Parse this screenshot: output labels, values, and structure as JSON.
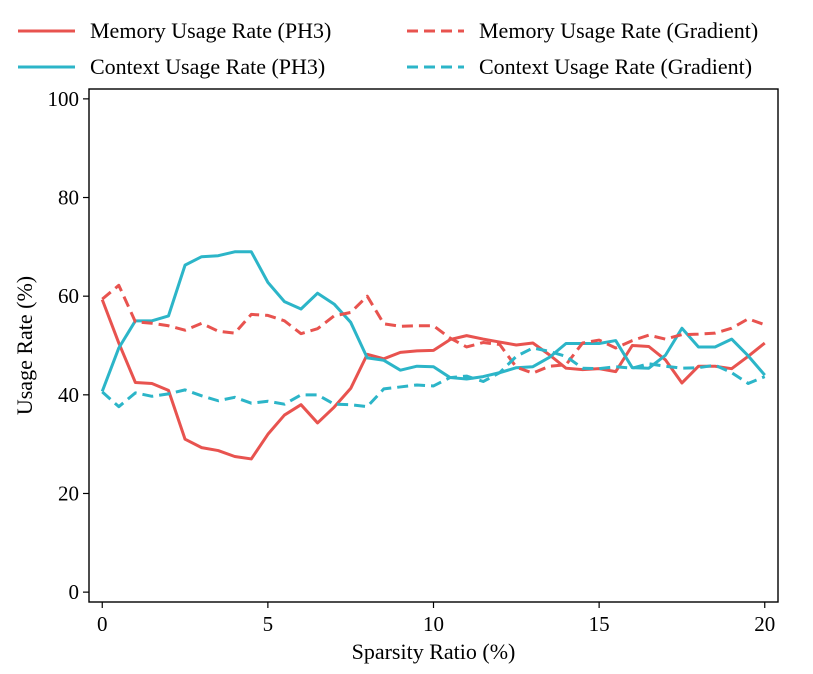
{
  "chart_data": {
    "type": "line",
    "title": "",
    "xlabel": "Sparsity Ratio (%)",
    "ylabel": "Usage Rate (%)",
    "xlim": [
      -0.4,
      20.4
    ],
    "ylim": [
      -2,
      102
    ],
    "xticks": [
      0,
      5,
      10,
      15,
      20
    ],
    "yticks": [
      0,
      20,
      40,
      60,
      80,
      100
    ],
    "grid": false,
    "legend_position": "top",
    "x": [
      0,
      0.5,
      1,
      1.5,
      2,
      2.5,
      3,
      3.5,
      4,
      4.5,
      5,
      5.5,
      6,
      6.5,
      7,
      7.5,
      8,
      8.5,
      9,
      9.5,
      10,
      10.5,
      11,
      11.5,
      12,
      12.5,
      13,
      13.5,
      14,
      14.5,
      15,
      15.5,
      16,
      16.5,
      17,
      17.5,
      18,
      18.5,
      19,
      19.5,
      20
    ],
    "series": [
      {
        "name": "Memory Usage Rate (PH3)",
        "color": "#e8534f",
        "dash": "solid",
        "values": [
          59.3,
          50.5,
          42.5,
          42.3,
          40.9,
          31.0,
          29.3,
          28.7,
          27.5,
          27.0,
          32.0,
          35.9,
          38.0,
          34.3,
          37.5,
          41.3,
          48.2,
          47.3,
          48.6,
          48.9,
          49.0,
          51.2,
          52.0,
          51.3,
          50.7,
          50.1,
          50.5,
          48.1,
          45.4,
          45.1,
          45.3,
          44.7,
          50.0,
          49.8,
          47.1,
          42.4,
          45.8,
          45.8,
          45.3,
          47.8,
          50.5
        ]
      },
      {
        "name": "Context Usage Rate (PH3)",
        "color": "#2cb5c8",
        "dash": "solid",
        "values": [
          40.7,
          49.5,
          55.0,
          55.0,
          56.0,
          66.3,
          68.0,
          68.2,
          69.0,
          69.0,
          62.8,
          58.9,
          57.4,
          60.6,
          58.4,
          54.7,
          47.5,
          47.0,
          45.0,
          45.8,
          45.7,
          43.5,
          43.2,
          43.7,
          44.5,
          45.5,
          45.7,
          47.6,
          50.4,
          50.4,
          50.4,
          51.0,
          45.5,
          45.4,
          48.0,
          53.5,
          49.7,
          49.7,
          51.3,
          47.9,
          44.0
        ]
      },
      {
        "name": "Memory Usage Rate (Gradient)",
        "color": "#e8534f",
        "dash": "dashed",
        "values": [
          59.4,
          62.2,
          54.8,
          54.5,
          54.0,
          53.1,
          54.5,
          52.9,
          52.5,
          56.3,
          56.1,
          55.0,
          52.4,
          53.4,
          56.0,
          56.7,
          60.0,
          54.4,
          53.9,
          54.0,
          54.0,
          51.5,
          49.7,
          50.6,
          50.2,
          45.6,
          44.4,
          45.8,
          46.1,
          50.5,
          51.1,
          49.5,
          51.0,
          52.1,
          51.3,
          52.2,
          52.3,
          52.5,
          53.5,
          55.4,
          54.2
        ]
      },
      {
        "name": "Context Usage Rate (Gradient)",
        "color": "#2cb5c8",
        "dash": "dashed",
        "values": [
          40.6,
          37.6,
          40.4,
          39.7,
          40.2,
          41.0,
          39.8,
          38.8,
          39.5,
          38.3,
          38.7,
          38.1,
          40.0,
          40.0,
          38.1,
          38.0,
          37.6,
          41.2,
          41.6,
          42.0,
          41.8,
          43.5,
          43.8,
          42.7,
          44.5,
          47.8,
          49.5,
          48.8,
          47.8,
          45.4,
          45.3,
          45.7,
          45.4,
          46.3,
          45.8,
          45.4,
          45.5,
          46.0,
          44.5,
          42.3,
          43.7
        ]
      }
    ]
  }
}
